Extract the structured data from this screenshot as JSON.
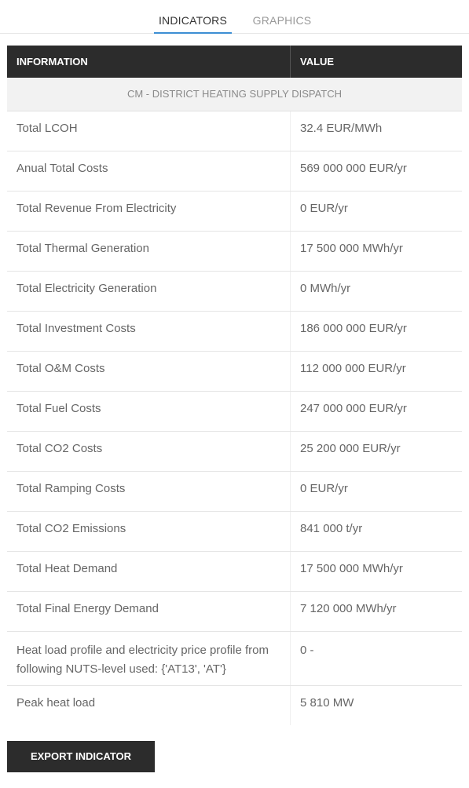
{
  "tabs": {
    "indicators": "INDICATORS",
    "graphics": "GRAPHICS",
    "active": "INDICATORS"
  },
  "table": {
    "headers": {
      "information": "INFORMATION",
      "value": "VALUE"
    },
    "section_title": "CM - DISTRICT HEATING SUPPLY DISPATCH",
    "rows": [
      {
        "label": "Total LCOH",
        "value": "32.4 EUR/MWh"
      },
      {
        "label": "Anual Total Costs",
        "value": "569 000 000 EUR/yr"
      },
      {
        "label": "Total Revenue From Electricity",
        "value": "0 EUR/yr"
      },
      {
        "label": "Total Thermal Generation",
        "value": "17 500 000 MWh/yr"
      },
      {
        "label": "Total Electricity Generation",
        "value": "0 MWh/yr"
      },
      {
        "label": "Total Investment Costs",
        "value": "186 000 000 EUR/yr"
      },
      {
        "label": "Total O&M Costs",
        "value": "112 000 000 EUR/yr"
      },
      {
        "label": "Total Fuel Costs",
        "value": "247 000 000 EUR/yr"
      },
      {
        "label": "Total CO2 Costs",
        "value": "25 200 000 EUR/yr"
      },
      {
        "label": "Total Ramping Costs",
        "value": "0 EUR/yr"
      },
      {
        "label": "Total CO2 Emissions",
        "value": "841 000 t/yr"
      },
      {
        "label": "Total Heat Demand",
        "value": "17 500 000 MWh/yr"
      },
      {
        "label": "Total Final Energy Demand",
        "value": "7 120 000 MWh/yr"
      },
      {
        "label": "Heat load profile and electricity price profile from following NUTS-level used: {'AT13', 'AT'}",
        "value": "0 -"
      },
      {
        "label": "Peak heat load",
        "value": "5 810 MW"
      }
    ]
  },
  "actions": {
    "export_label": "EXPORT INDICATOR"
  },
  "colors": {
    "header_bg": "#2c2c2c",
    "tab_accent": "#3d8fd3",
    "section_bg": "#f2f2f2"
  }
}
